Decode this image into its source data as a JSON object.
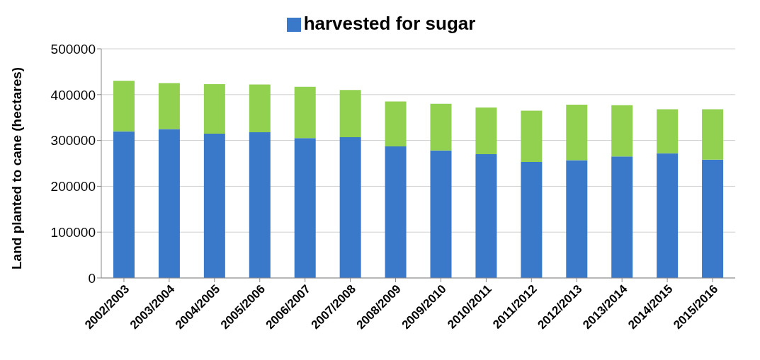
{
  "chart_data": {
    "type": "bar",
    "stacked": true,
    "ylabel": "Land planted to cane (hectares)",
    "categories": [
      "2002/2003",
      "2003/2004",
      "2004/2005",
      "2005/2006",
      "2006/2007",
      "2007/2008",
      "2008/2009",
      "2009/2010",
      "2010/2011",
      "2011/2012",
      "2012/2013",
      "2013/2014",
      "2014/2015",
      "2015/2016"
    ],
    "series": [
      {
        "name": "harvested for sugar",
        "color": "#3a78c9",
        "values": [
          320000,
          325000,
          315000,
          318000,
          305000,
          307000,
          287000,
          278000,
          270000,
          253000,
          257000,
          265000,
          272000,
          258000
        ]
      },
      {
        "color": "#92d050",
        "values": [
          110000,
          100000,
          108000,
          104000,
          112000,
          103000,
          98000,
          102000,
          102000,
          112000,
          121000,
          112000,
          96000,
          110000
        ]
      }
    ],
    "ylim": [
      0,
      500000
    ],
    "yticks": [
      0,
      100000,
      200000,
      300000,
      400000,
      500000
    ],
    "grid": "y",
    "legend": "top"
  }
}
